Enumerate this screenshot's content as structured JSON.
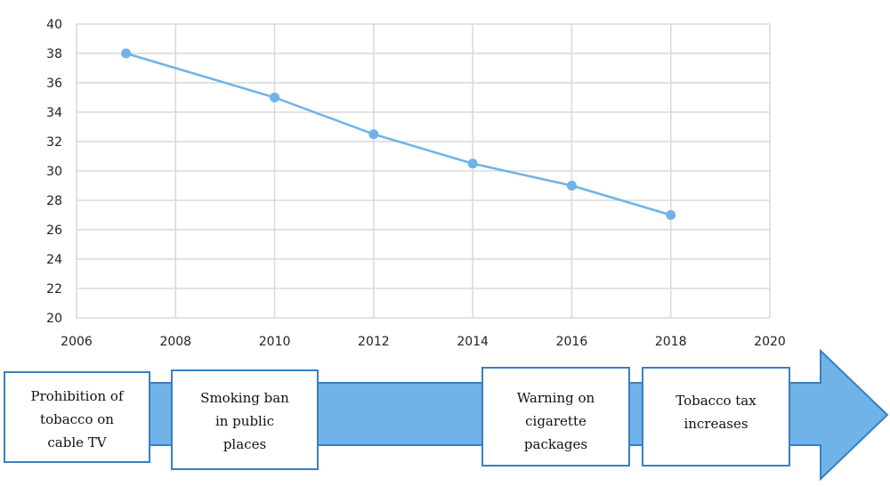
{
  "chart_data": {
    "type": "line",
    "title": "",
    "xlabel": "",
    "ylabel": "",
    "x": [
      2007,
      2010,
      2012,
      2014,
      2016,
      2018
    ],
    "series": [
      {
        "values": [
          38,
          35,
          32.5,
          30.5,
          29,
          27
        ]
      }
    ],
    "xlim": [
      2006,
      2020
    ],
    "ylim": [
      20,
      40
    ],
    "xticks": [
      2006,
      2008,
      2010,
      2012,
      2014,
      2016,
      2018,
      2020
    ],
    "yticks": [
      20,
      22,
      24,
      26,
      28,
      30,
      32,
      34,
      36,
      38,
      40
    ],
    "grid": true,
    "series_color": "#6fb3e8"
  },
  "timeline": {
    "arrow_fill": "#6fb3e8",
    "arrow_stroke": "#3a7fc0",
    "events": [
      {
        "label": [
          "Prohibition of",
          "tobacco on",
          "cable TV"
        ]
      },
      {
        "label": [
          "Smoking ban",
          "in public",
          "places"
        ]
      },
      {
        "label": [
          "Warning on",
          "cigarette",
          "packages"
        ]
      },
      {
        "label": [
          "Tobacco tax",
          "increases"
        ]
      }
    ]
  }
}
